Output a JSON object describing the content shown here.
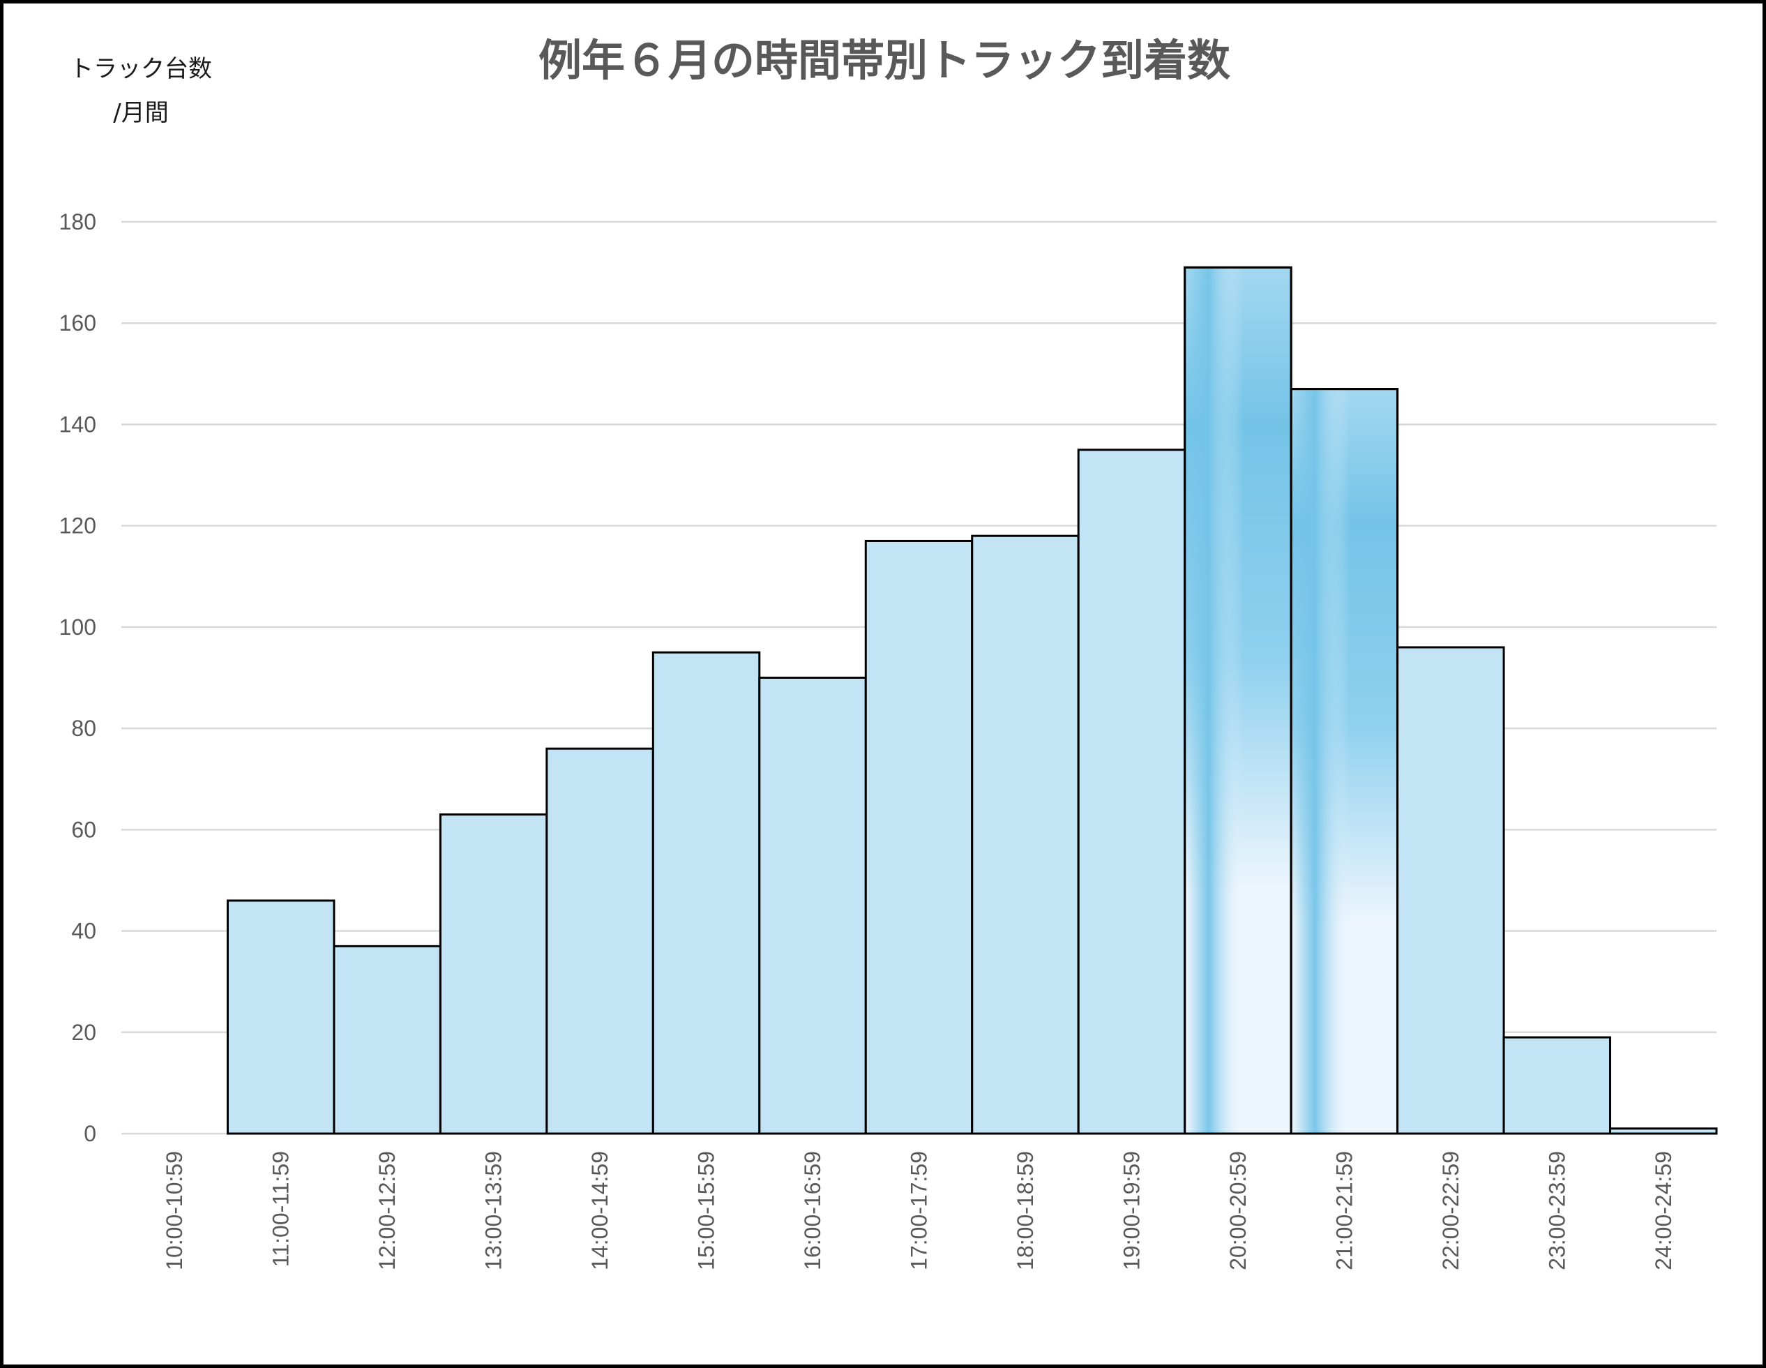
{
  "chart_data": {
    "type": "bar",
    "title": "例年６月の時間帯別トラック到着数",
    "ylabel_line1": "トラック台数",
    "ylabel_line2": "/月間",
    "xlabel": "",
    "ylim": [
      0,
      180
    ],
    "yticks": [
      0,
      20,
      40,
      60,
      80,
      100,
      120,
      140,
      160,
      180
    ],
    "grid": true,
    "categories": [
      "10:00-10:59",
      "11:00-11:59",
      "12:00-12:59",
      "13:00-13:59",
      "14:00-14:59",
      "15:00-15:59",
      "16:00-16:59",
      "17:00-17:59",
      "18:00-18:59",
      "19:00-19:59",
      "20:00-20:59",
      "21:00-21:59",
      "22:00-22:59",
      "23:00-23:59",
      "24:00-24:59"
    ],
    "values": [
      0,
      46,
      37,
      63,
      76,
      95,
      90,
      117,
      118,
      135,
      171,
      147,
      96,
      19,
      1
    ],
    "highlighted": [
      "20:00-20:59",
      "21:00-21:59"
    ],
    "colors": {
      "bar_fill": "#c2e4f4",
      "highlight_dark": "#74c4e8",
      "highlight_light": "#eef6fd",
      "bar_outline": "#000000",
      "gridline": "#d9d9d9",
      "tick_label": "#595959",
      "title": "#595959"
    }
  }
}
